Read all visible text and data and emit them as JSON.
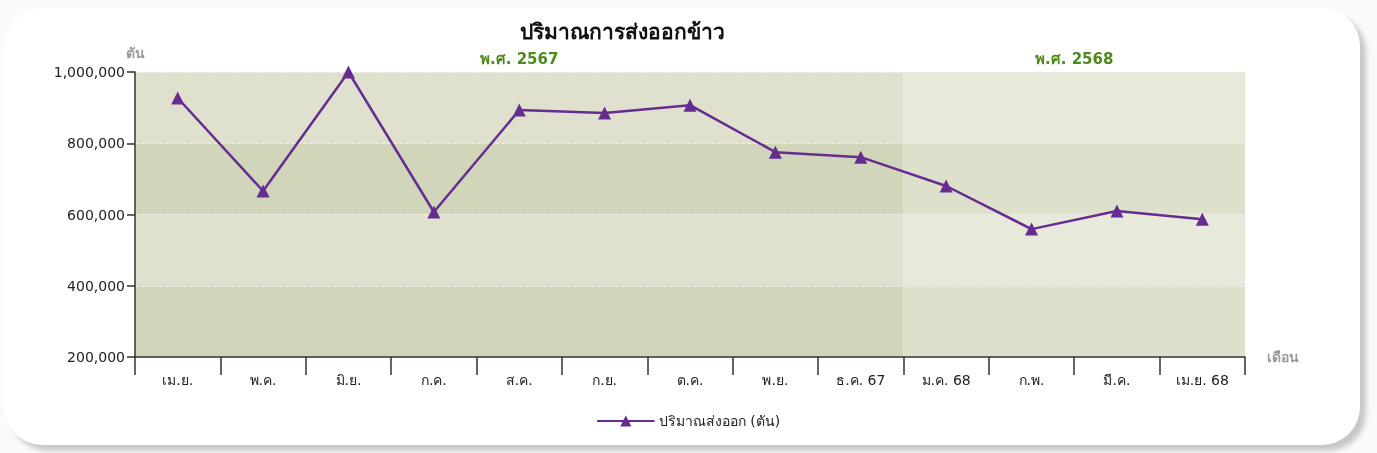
{
  "chart_data": {
    "type": "line",
    "title": "ปริมาณการส่งออกข้าว",
    "xlabel": "เดือน",
    "ylabel": "ตัน",
    "categories": [
      "เม.ย.",
      "พ.ค.",
      "มิ.ย.",
      "ก.ค.",
      "ส.ค.",
      "ก.ย.",
      "ต.ค.",
      "พ.ย.",
      "ธ.ค. 67",
      "ม.ค. 68",
      "ก.พ.",
      "มี.ค.",
      "เม.ย. 68"
    ],
    "series": [
      {
        "name": "ปริมาณส่งออก (ตัน)",
        "color": "#662d91",
        "values": [
          927000,
          666000,
          1000000,
          607000,
          893000,
          885000,
          907000,
          775000,
          761000,
          680000,
          559000,
          610000,
          587000
        ]
      }
    ],
    "ylim": [
      200000,
      1000000
    ],
    "yticks": [
      {
        "value": 200000,
        "label": "200,000"
      },
      {
        "value": 400000,
        "label": "400,000"
      },
      {
        "value": 600000,
        "label": "600,000"
      },
      {
        "value": 800000,
        "label": "800,000"
      },
      {
        "value": 1000000,
        "label": "1,000,000"
      }
    ],
    "bands": [
      {
        "axis": "x",
        "from": "เม.ย.",
        "to": "ธ.ค. 67",
        "label": "พ.ศ. 2567",
        "color": "#d1d5b9"
      },
      {
        "axis": "x",
        "from": "ม.ค. 68",
        "to": "เม.ย. 68",
        "label": "พ.ศ. 2568",
        "color": "#dde0ca"
      }
    ],
    "grid": "y",
    "legend": "bottom",
    "marker": "triangle",
    "line_style": "solid"
  }
}
